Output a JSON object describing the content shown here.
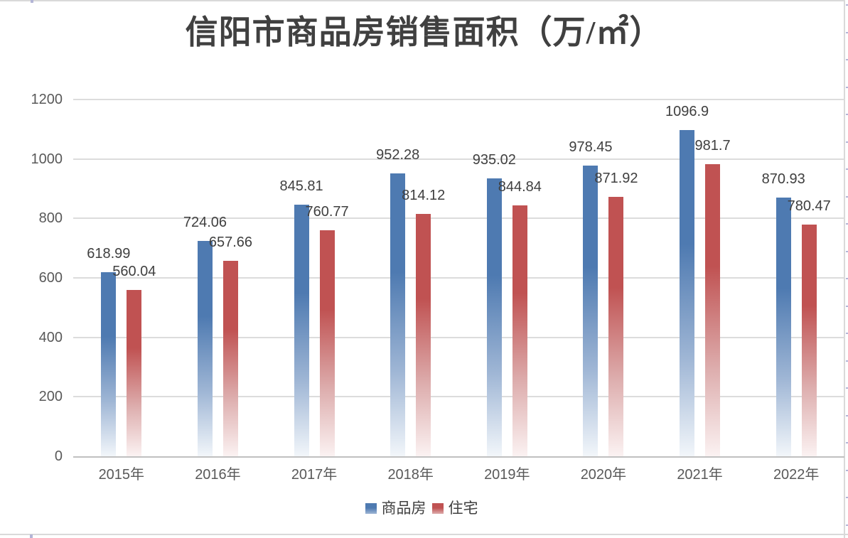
{
  "title": "信阳市商品房销售面积（万/㎡）",
  "chart_data": {
    "type": "bar",
    "categories": [
      "2015年",
      "2016年",
      "2017年",
      "2018年",
      "2019年",
      "2020年",
      "2021年",
      "2022年"
    ],
    "series": [
      {
        "name": "商品房",
        "color": "#4e7ab1",
        "color_mid": "#9fb6d5",
        "color_faint": "#f2f6fa",
        "values": [
          618.99,
          724.06,
          845.81,
          952.28,
          935.02,
          978.45,
          1096.9,
          870.93
        ]
      },
      {
        "name": "住宅",
        "color": "#c05252",
        "color_mid": "#ddadad",
        "color_faint": "#fbf2f2",
        "values": [
          560.04,
          657.66,
          760.77,
          814.12,
          844.84,
          871.92,
          981.7,
          780.47
        ]
      }
    ],
    "xlabel": "",
    "ylabel": "",
    "ylim": [
      0,
      1200
    ],
    "yticks": [
      0,
      200,
      400,
      600,
      800,
      1000,
      1200
    ],
    "grid": true,
    "data_labels": true,
    "legend_position": "bottom"
  },
  "colors": {
    "background": "#ffffff",
    "title_text": "#404040",
    "axis_text": "#595959",
    "data_label_text": "#3f3f3f",
    "gridline": "#dcdcdc",
    "axis_line": "#c0c0c0",
    "sheet_edge_line": "#d9d9d9",
    "sheet_edge_tick": "#b3b5d6"
  }
}
